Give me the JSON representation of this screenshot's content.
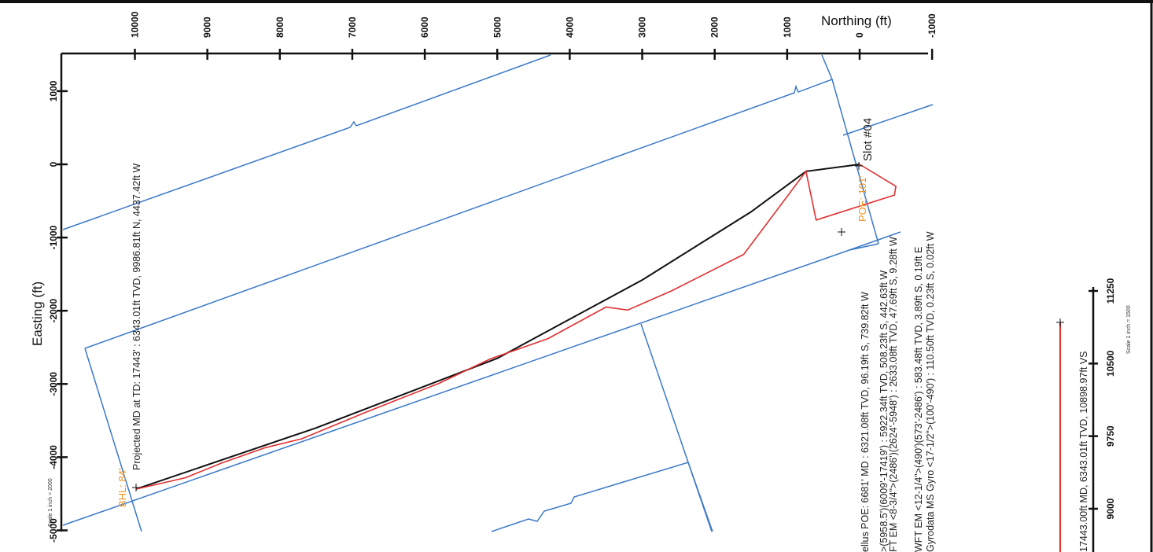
{
  "chart_data": [
    {
      "type": "line",
      "title": "",
      "xlabel": "Northing (ft)",
      "ylabel": "Easting (ft)",
      "x_ticks": [
        "10000",
        "9000",
        "8000",
        "7000",
        "6000",
        "5000",
        "4000",
        "3000",
        "2000",
        "1000",
        "0",
        "-1000"
      ],
      "y_ticks": [
        "1000",
        "0",
        "-1000",
        "-2000",
        "-3000",
        "-4000",
        "-5000"
      ],
      "xlim": [
        -1000,
        10000
      ],
      "ylim": [
        -5000,
        1500
      ],
      "scale_note": "Scale 1 inch = 2000",
      "series": [
        {
          "color": "#111111",
          "x": [
            0,
            739.82,
            1500,
            3000,
            5000,
            7500,
            9986.81
          ],
          "y": [
            0,
            -96,
            -650,
            -1580,
            -2650,
            -3600,
            -4437.42
          ]
        },
        {
          "color": "#e03030",
          "x": [
            0,
            -500,
            -480,
            600,
            739.82,
            1600,
            2600,
            3200,
            3500,
            4300,
            5100,
            5800,
            6800,
            7700,
            8200,
            8800,
            9300,
            9986.81
          ],
          "y": [
            0,
            -300,
            -420,
            -760,
            -96,
            -1230,
            -1730,
            -1990,
            -1950,
            -2380,
            -2660,
            -2990,
            -3380,
            -3750,
            -3870,
            -4080,
            -4280,
            -4437.42
          ]
        }
      ],
      "boundaries_color": "#3b78c8",
      "labels": {
        "slot": "Slot #04",
        "poe": "POE: 101'",
        "bhl": "BHL: 84'",
        "projected": "Projected MD at TD: 17443' : 6343.01ft TVD, 9986.81ft N, 4437.42ft W"
      }
    },
    {
      "type": "line",
      "title": "",
      "x_ticks": [
        "9000",
        "9750",
        "10500",
        "11250"
      ],
      "series": [
        {
          "color": "#e03030"
        }
      ],
      "scale_note": "Scale 1 inch = 1500",
      "labels": {
        "vs_top": "10898.97ft VS",
        "vs_full": "17443.00ft MD, 6343.01ft TVD, 10898.97ft VS"
      }
    }
  ],
  "annotations": [
    "ellus POE: 6681' MD : 6321.08ft TVD, 96.19ft S, 739.82ft W",
    ">(5958.5')(6009'-17419') : 5922.34ft TVD, 508.23ft S, 442.63ft W",
    "FT EM <8-3/4\">(2486')(2624'-5948') : 2633.08ft TVD, 47.69ft S, 9.28ft W",
    "WFT EM <12-1/4\">(490')(573'-2486') : 583.48ft TVD, 3.89ft S, 0.19ft E",
    "Gyrodata MS Gyro <17-1/2\">(100'-490') : 110.50ft TVD, 0.23ft S, 0.02ft W"
  ]
}
